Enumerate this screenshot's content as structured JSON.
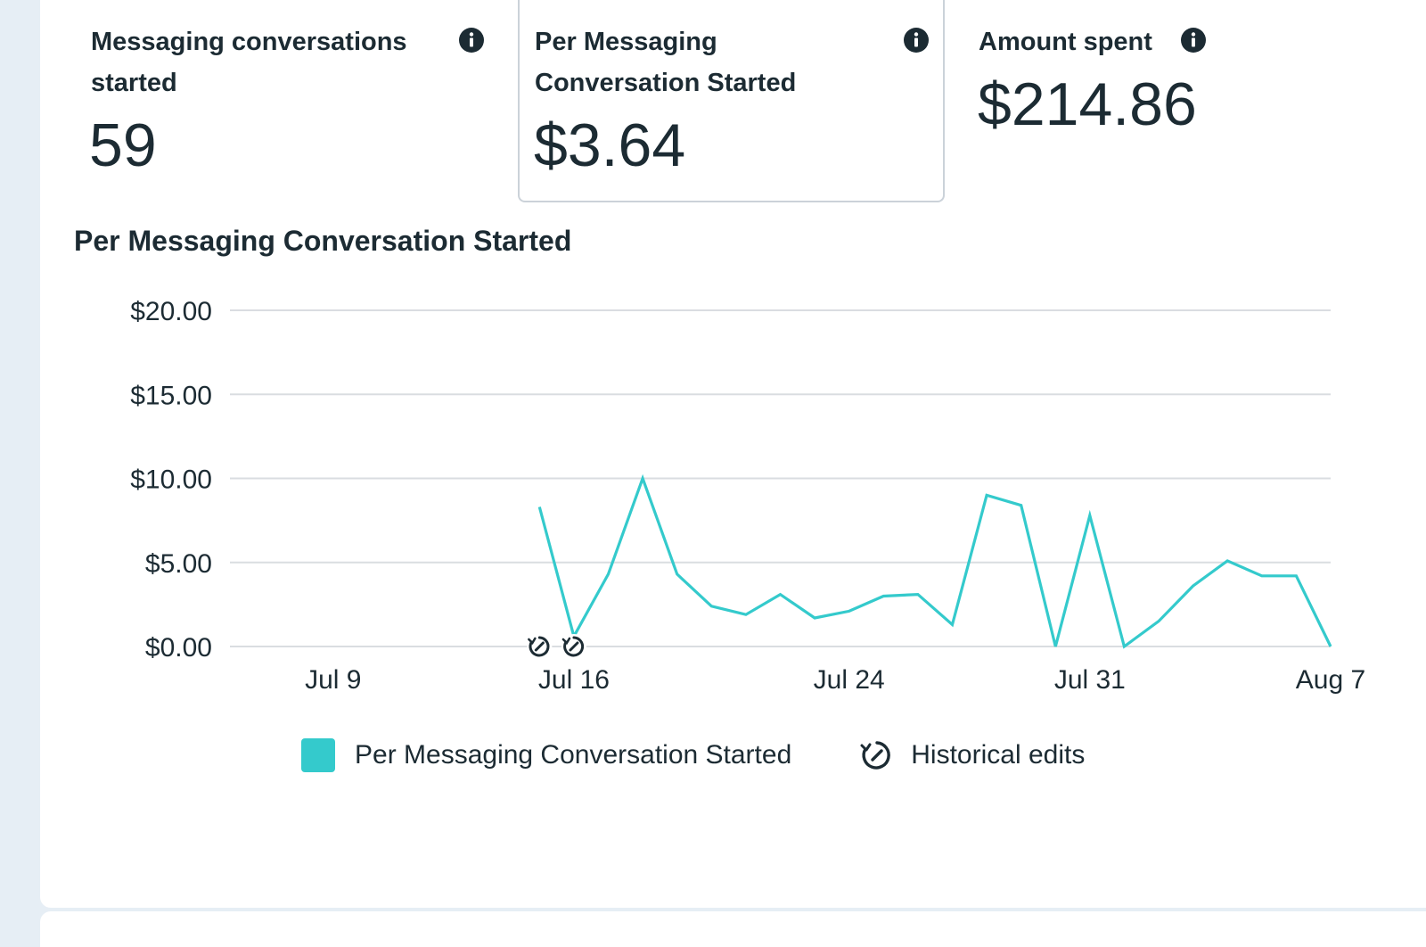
{
  "metrics": [
    {
      "label_line1": "Messaging conversations",
      "label_line2": "started",
      "value": "59",
      "icon": "info-icon"
    },
    {
      "label_line1": "Per Messaging",
      "label_line2": "Conversation Started",
      "value": "$3.64",
      "icon": "info-icon",
      "selected": true
    },
    {
      "label_line1": "Amount spent",
      "label_line2": "",
      "value": "$214.86",
      "icon": "info-icon"
    }
  ],
  "chart_title": "Per Messaging Conversation Started",
  "legend": {
    "series_label": "Per Messaging Conversation Started",
    "edits_label": "Historical edits",
    "edits_icon": "historical-edit-icon"
  },
  "colors": {
    "series": "#34cacc",
    "grid": "#dadde1",
    "text": "#1c2b33"
  },
  "chart_data": {
    "type": "line",
    "title": "Per Messaging Conversation Started",
    "xlabel": "",
    "ylabel": "",
    "ylim": [
      0,
      20
    ],
    "yticks": [
      {
        "value": 0,
        "label": "$0.00"
      },
      {
        "value": 5,
        "label": "$5.00"
      },
      {
        "value": 10,
        "label": "$10.00"
      },
      {
        "value": 15,
        "label": "$15.00"
      },
      {
        "value": 20,
        "label": "$20.00"
      }
    ],
    "xlim": [
      "2025-07-07",
      "2025-08-07"
    ],
    "xticks": [
      {
        "date": "2025-07-09",
        "label": "Jul 9"
      },
      {
        "date": "2025-07-16",
        "label": "Jul 16"
      },
      {
        "date": "2025-07-24",
        "label": "Jul 24"
      },
      {
        "date": "2025-07-31",
        "label": "Jul 31"
      },
      {
        "date": "2025-08-07",
        "label": "Aug 7"
      }
    ],
    "grid": true,
    "legend_position": "bottom",
    "series": [
      {
        "name": "Per Messaging Conversation Started",
        "points": [
          {
            "x": "2025-07-15",
            "y": 8.3
          },
          {
            "x": "2025-07-16",
            "y": 0.6
          },
          {
            "x": "2025-07-17",
            "y": 4.3
          },
          {
            "x": "2025-07-18",
            "y": 10.0
          },
          {
            "x": "2025-07-19",
            "y": 4.3
          },
          {
            "x": "2025-07-20",
            "y": 2.4
          },
          {
            "x": "2025-07-21",
            "y": 1.9
          },
          {
            "x": "2025-07-22",
            "y": 3.1
          },
          {
            "x": "2025-07-23",
            "y": 1.7
          },
          {
            "x": "2025-07-24",
            "y": 2.1
          },
          {
            "x": "2025-07-25",
            "y": 3.0
          },
          {
            "x": "2025-07-26",
            "y": 3.1
          },
          {
            "x": "2025-07-27",
            "y": 1.3
          },
          {
            "x": "2025-07-28",
            "y": 9.0
          },
          {
            "x": "2025-07-29",
            "y": 8.4
          },
          {
            "x": "2025-07-30",
            "y": 0.0
          },
          {
            "x": "2025-07-31",
            "y": 7.8
          },
          {
            "x": "2025-08-01",
            "y": 0.0
          },
          {
            "x": "2025-08-02",
            "y": 1.5
          },
          {
            "x": "2025-08-03",
            "y": 3.6
          },
          {
            "x": "2025-08-04",
            "y": 5.1
          },
          {
            "x": "2025-08-05",
            "y": 4.2
          },
          {
            "x": "2025-08-06",
            "y": 4.2
          },
          {
            "x": "2025-08-07",
            "y": 0.0
          }
        ]
      }
    ],
    "historical_edits": [
      "2025-07-15",
      "2025-07-16"
    ]
  }
}
